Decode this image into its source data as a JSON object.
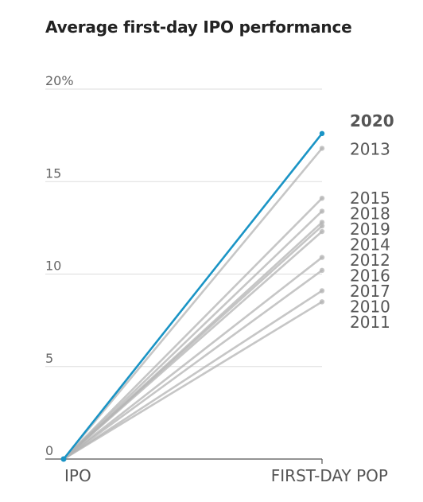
{
  "chart_data": {
    "type": "line",
    "title": "Average first-day IPO performance",
    "xlabel": "",
    "ylabel": "",
    "categories": [
      "IPO",
      "FIRST-DAY POP"
    ],
    "ylim": [
      0,
      20
    ],
    "yticks": [
      0,
      5,
      10,
      15,
      20
    ],
    "ytick_labels": [
      "0",
      "5",
      "10",
      "15",
      "20%"
    ],
    "grid": true,
    "highlight_color": "#1a94c5",
    "default_color": "#b3b3b3",
    "series": [
      {
        "name": "2020",
        "values": [
          0,
          17.6
        ],
        "highlight": true
      },
      {
        "name": "2013",
        "values": [
          0,
          16.8
        ]
      },
      {
        "name": "2015",
        "values": [
          0,
          14.1
        ]
      },
      {
        "name": "2018",
        "values": [
          0,
          13.4
        ]
      },
      {
        "name": "2019",
        "values": [
          0,
          12.8
        ]
      },
      {
        "name": "2014",
        "values": [
          0,
          12.6
        ]
      },
      {
        "name": "2012",
        "values": [
          0,
          12.3
        ]
      },
      {
        "name": "2016",
        "values": [
          0,
          10.9
        ]
      },
      {
        "name": "2017",
        "values": [
          0,
          10.2
        ]
      },
      {
        "name": "2010",
        "values": [
          0,
          9.1
        ]
      },
      {
        "name": "2011",
        "values": [
          0,
          8.5
        ]
      }
    ]
  }
}
